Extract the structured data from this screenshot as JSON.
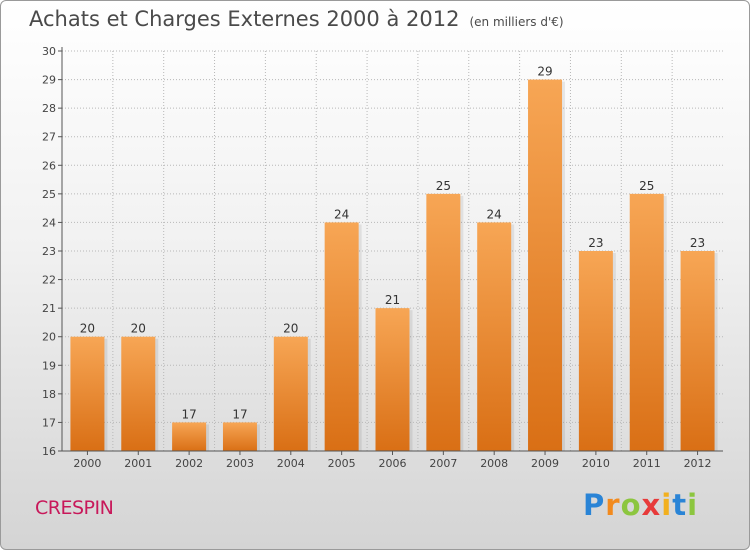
{
  "title": "Achats et Charges Externes 2000 à 2012",
  "title_unit": "(en milliers d'€)",
  "city": "CRESPIN",
  "logo_text": "Proxiti",
  "colors": {
    "bar_light": "#f7a655",
    "bar_dark": "#d96f15",
    "axis": "#555555",
    "grid": "#b8b8b8",
    "title": "#4a4a4a",
    "city": "#c8185a"
  },
  "chart_data": {
    "type": "bar",
    "categories": [
      "2000",
      "2001",
      "2002",
      "2003",
      "2004",
      "2005",
      "2006",
      "2007",
      "2008",
      "2009",
      "2010",
      "2011",
      "2012"
    ],
    "values": [
      20,
      20,
      17,
      17,
      20,
      24,
      21,
      25,
      24,
      29,
      23,
      25,
      23
    ],
    "ylim": [
      16,
      30
    ],
    "yticks": [
      16,
      17,
      18,
      19,
      20,
      21,
      22,
      23,
      24,
      25,
      26,
      27,
      28,
      29,
      30
    ],
    "xlabel": "",
    "ylabel": "",
    "grid": true,
    "data_labels": true
  }
}
